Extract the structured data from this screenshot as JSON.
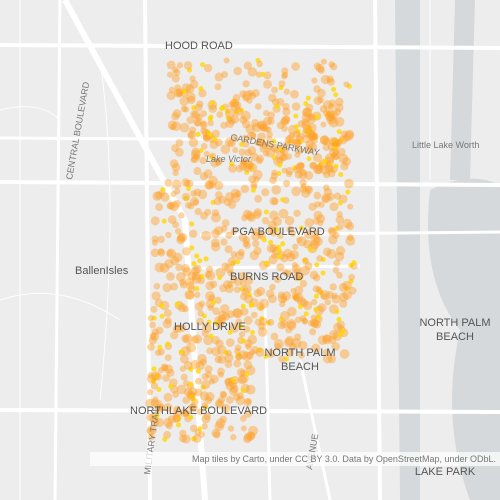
{
  "map": {
    "labels": {
      "hood_road": "HOOD ROAD",
      "gardens_parkway": "GARDENS PARKWAY",
      "lake_victor": "Lake Victor",
      "pga_boulevard": "PGA BOULEVARD",
      "burns_road": "BURNS ROAD",
      "holly_drive": "HOLLY DRIVE",
      "north_palm_beach": [
        "NORTH PALM",
        "BEACH"
      ],
      "ballenisles": "BallenIsles",
      "little_lake_worth": "Little Lake Worth",
      "lake_park": "LAKE PARK",
      "central_boulevard": "CENTRAL BOULEVARD",
      "military_trail": "MILITARY TRAIL",
      "northlake_boulevard": "NORTHLAKE BOULEVARD",
      "avenue": "AVENUE",
      "north_palm_beach_east": [
        "NORTH PALM",
        "BEACH"
      ]
    },
    "attribution": "Map tiles by Carto, under CC BY 3.0. Data by OpenStreetMap, under ODbL."
  }
}
